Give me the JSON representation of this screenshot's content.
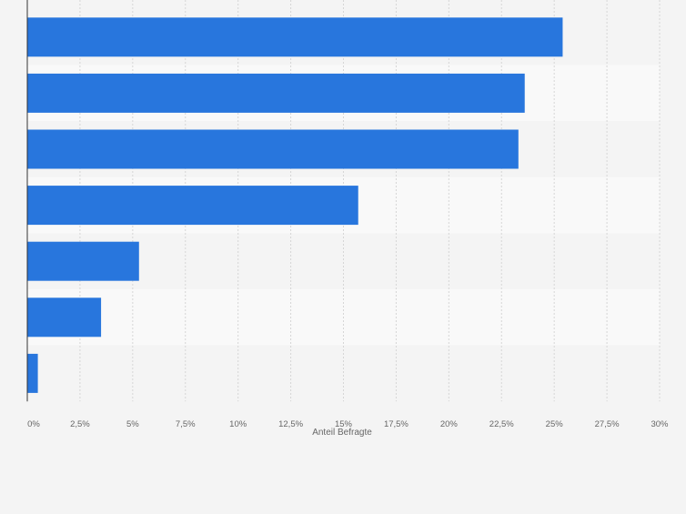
{
  "chart_data": {
    "type": "bar",
    "orientation": "horizontal",
    "categories": [
      "",
      "",
      "",
      "",
      "",
      "",
      ""
    ],
    "values": [
      25.4,
      23.6,
      23.3,
      15.7,
      5.3,
      3.5,
      0.5
    ],
    "xlabel": "Anteil Befragte",
    "ylabel": "",
    "xlim": [
      0,
      30
    ],
    "tick_values": [
      0,
      2.5,
      5,
      7.5,
      10,
      12.5,
      15,
      17.5,
      20,
      22.5,
      25,
      27.5,
      30
    ],
    "tick_labels": [
      "0%",
      "2,5%",
      "5%",
      "7,5%",
      "10%",
      "12,5%",
      "15%",
      "17,5%",
      "20%",
      "22,5%",
      "25%",
      "27,5%",
      "30%"
    ],
    "grid": true,
    "bar_color": "#2876dd",
    "band_colors": [
      "#f4f4f4",
      "#f9f9f9"
    ]
  }
}
